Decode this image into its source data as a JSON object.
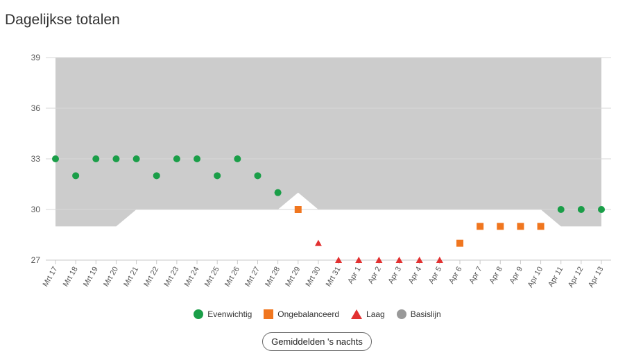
{
  "page_title": "Dagelijkse totalen",
  "colors": {
    "balanced": "#1a9e48",
    "unbalanced": "#f0761f",
    "low": "#e23131",
    "baseline": "#999999",
    "band": "#cccccc",
    "grid": "#d7d7d7"
  },
  "chart_data": {
    "type": "scatter",
    "title": "Dagelijkse totalen",
    "categories": [
      "Mrt 17",
      "Mrt 18",
      "Mrt 19",
      "Mrt 20",
      "Mrt 21",
      "Mrt 22",
      "Mrt 23",
      "Mrt 24",
      "Mrt 25",
      "Mrt 26",
      "Mrt 27",
      "Mrt 28",
      "Mrt 29",
      "Mrt 30",
      "Mrt 31",
      "Apr 1",
      "Apr 2",
      "Apr 3",
      "Apr 4",
      "Apr 5",
      "Apr 6",
      "Apr 7",
      "Apr 8",
      "Apr 9",
      "Apr 10",
      "Apr 11",
      "Apr 12",
      "Apr 13"
    ],
    "values": [
      33,
      32,
      33,
      33,
      33,
      32,
      33,
      33,
      32,
      33,
      32,
      31,
      30,
      28,
      27,
      27,
      27,
      27,
      27,
      27,
      28,
      29,
      29,
      29,
      29,
      30,
      30,
      30
    ],
    "status": [
      "balanced",
      "balanced",
      "balanced",
      "balanced",
      "balanced",
      "balanced",
      "balanced",
      "balanced",
      "balanced",
      "balanced",
      "balanced",
      "balanced",
      "unbalanced",
      "low",
      "low",
      "low",
      "low",
      "low",
      "low",
      "low",
      "unbalanced",
      "unbalanced",
      "unbalanced",
      "unbalanced",
      "unbalanced",
      "balanced",
      "balanced",
      "balanced"
    ],
    "baseline_band": {
      "upper": 39,
      "lower": [
        29,
        29,
        29,
        29,
        30,
        30,
        30,
        30,
        30,
        30,
        30,
        30,
        31,
        30,
        30,
        30,
        30,
        30,
        30,
        30,
        30,
        30,
        30,
        30,
        30,
        29,
        29,
        29
      ]
    },
    "ylim": [
      27,
      39
    ],
    "yticks": [
      27,
      30,
      33,
      36,
      39
    ],
    "grid": true,
    "legend_placement": "bottom"
  },
  "legend": [
    {
      "key": "balanced",
      "label": "Evenwichtig",
      "shape": "circle"
    },
    {
      "key": "unbalanced",
      "label": "Ongebalanceerd",
      "shape": "square"
    },
    {
      "key": "low",
      "label": "Laag",
      "shape": "triangle"
    },
    {
      "key": "baseline",
      "label": "Basislijn",
      "shape": "circle"
    }
  ],
  "night_average_button": "Gemiddelden 's nachts"
}
